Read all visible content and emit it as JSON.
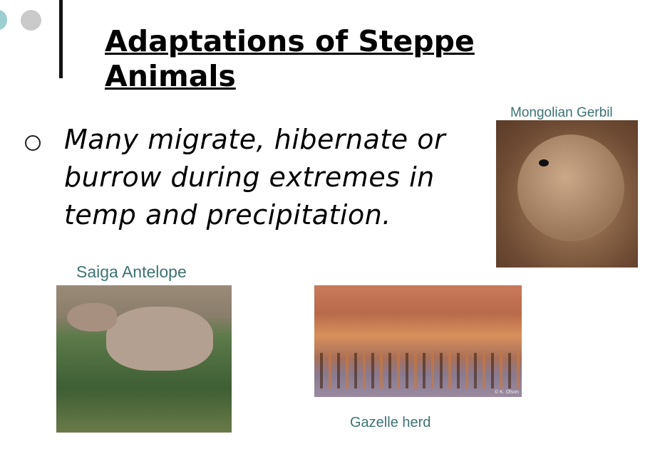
{
  "slide": {
    "title": "Adaptations of Steppe Animals",
    "bullets": [
      "Many migrate, hibernate or burrow during extremes in temp and  precipitation."
    ],
    "images": [
      {
        "caption": "Mongolian Gerbil"
      },
      {
        "caption": "Saiga Antelope"
      },
      {
        "caption": "Gazelle herd",
        "watermark": "© K. Olson"
      }
    ]
  },
  "colors": {
    "accent_teal": "#9ccfcf",
    "caption": "#3e7272",
    "dot_gray": "#cacaca"
  }
}
